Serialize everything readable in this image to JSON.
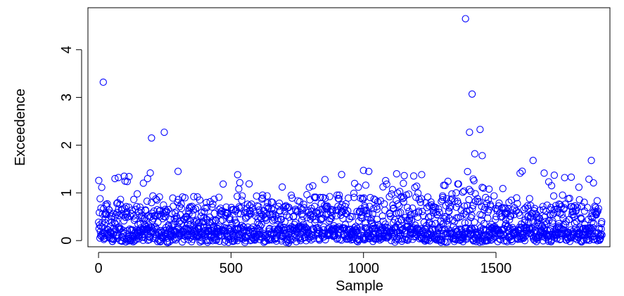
{
  "chart_data": {
    "type": "scatter",
    "title": "",
    "xlabel": "Sample",
    "ylabel": "Exceedence",
    "xlim": [
      -40,
      1930
    ],
    "ylim": [
      -0.13,
      4.88
    ],
    "xticks": [
      0,
      500,
      1000,
      1500
    ],
    "xtick_labels": [
      "0",
      "500",
      "1000",
      "1500"
    ],
    "yticks": [
      0,
      1,
      2,
      3,
      4
    ],
    "ytick_labels": [
      "0",
      "1",
      "2",
      "3",
      "4"
    ],
    "n_points": 1900,
    "grid": false,
    "point_color": "#0000ff",
    "marker": "open-circle",
    "highlighted_points": [
      {
        "x": 18,
        "y": 3.32
      },
      {
        "x": 200,
        "y": 2.15
      },
      {
        "x": 248,
        "y": 2.27
      },
      {
        "x": 62,
        "y": 1.3
      },
      {
        "x": 525,
        "y": 1.38
      },
      {
        "x": 1385,
        "y": 4.65
      },
      {
        "x": 1410,
        "y": 3.07
      },
      {
        "x": 1440,
        "y": 2.33
      },
      {
        "x": 1400,
        "y": 2.27
      },
      {
        "x": 1420,
        "y": 1.82
      },
      {
        "x": 1448,
        "y": 1.78
      },
      {
        "x": 1640,
        "y": 1.68
      },
      {
        "x": 1860,
        "y": 1.68
      },
      {
        "x": 1000,
        "y": 1.47
      },
      {
        "x": 1020,
        "y": 1.45
      },
      {
        "x": 1125,
        "y": 1.4
      },
      {
        "x": 1720,
        "y": 1.37
      }
    ],
    "bulk_distribution": {
      "x_range": [
        0,
        1900
      ],
      "typical_y_range": [
        0,
        0.9
      ],
      "occasional_peaks_up_to": 1.5,
      "denser_higher_region_x": [
        950,
        1500
      ]
    }
  }
}
